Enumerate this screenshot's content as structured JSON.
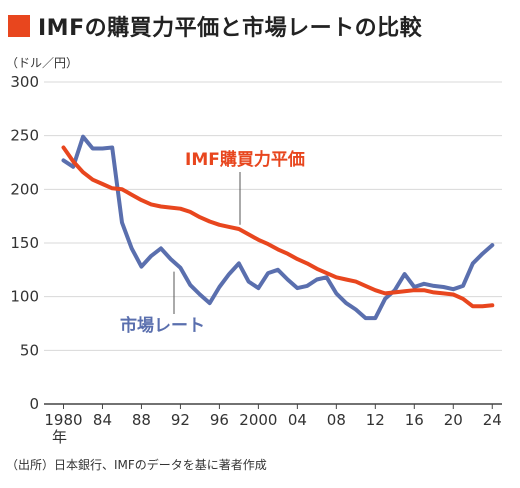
{
  "title": "IMFの購買力平価と市場レートの比較",
  "unit": "（ドル／円）",
  "source": "（出所）日本銀行、IMFのデータを基に著者作成",
  "colors": {
    "accent": "#e8461e",
    "ppp": "#e8461e",
    "market": "#5a6fae",
    "grid": "#d8d8d8",
    "axis": "#444444"
  },
  "chart_data": {
    "type": "line",
    "title": "IMFの購買力平価と市場レートの比較",
    "ylabel": "（ドル／円）",
    "xlabel": "",
    "ylim": [
      0,
      300
    ],
    "xlim": [
      1978,
      2025
    ],
    "yticks": [
      0,
      50,
      100,
      150,
      200,
      250,
      300
    ],
    "xticks": [
      {
        "value": 1980,
        "label": "1980"
      },
      {
        "value": 1984,
        "label": "84"
      },
      {
        "value": 1988,
        "label": "88"
      },
      {
        "value": 1992,
        "label": "92"
      },
      {
        "value": 1996,
        "label": "96"
      },
      {
        "value": 2000,
        "label": "2000"
      },
      {
        "value": 2004,
        "label": "04"
      },
      {
        "value": 2008,
        "label": "08"
      },
      {
        "value": 2012,
        "label": "12"
      },
      {
        "value": 2016,
        "label": "16"
      },
      {
        "value": 2020,
        "label": "20"
      },
      {
        "value": 2024,
        "label": "24"
      }
    ],
    "x_suffix": "年",
    "grid": true,
    "series": [
      {
        "name": "IMF購買力平価",
        "color": "#e8461e",
        "x": [
          1980,
          1981,
          1982,
          1983,
          1984,
          1985,
          1986,
          1987,
          1988,
          1989,
          1990,
          1991,
          1992,
          1993,
          1994,
          1995,
          1996,
          1997,
          1998,
          1999,
          2000,
          2001,
          2002,
          2003,
          2004,
          2005,
          2006,
          2007,
          2008,
          2009,
          2010,
          2011,
          2012,
          2013,
          2014,
          2015,
          2016,
          2017,
          2018,
          2019,
          2020,
          2021,
          2022,
          2023,
          2024
        ],
        "y": [
          239,
          226,
          216,
          209,
          205,
          201,
          200,
          195,
          190,
          186,
          184,
          183,
          182,
          179,
          174,
          170,
          167,
          165,
          163,
          158,
          153,
          149,
          144,
          140,
          135,
          131,
          126,
          122,
          118,
          116,
          114,
          110,
          106,
          103,
          104,
          105,
          106,
          106,
          104,
          103,
          102,
          98,
          91,
          91,
          92
        ]
      },
      {
        "name": "市場レート",
        "color": "#5a6fae",
        "x": [
          1980,
          1981,
          1982,
          1983,
          1984,
          1985,
          1986,
          1987,
          1988,
          1989,
          1990,
          1991,
          1992,
          1993,
          1994,
          1995,
          1996,
          1997,
          1998,
          1999,
          2000,
          2001,
          2002,
          2003,
          2004,
          2005,
          2006,
          2007,
          2008,
          2009,
          2010,
          2011,
          2012,
          2013,
          2014,
          2015,
          2016,
          2017,
          2018,
          2019,
          2020,
          2021,
          2022,
          2023,
          2024
        ],
        "y": [
          227,
          221,
          249,
          238,
          238,
          239,
          169,
          145,
          128,
          138,
          145,
          135,
          127,
          111,
          102,
          94,
          109,
          121,
          131,
          114,
          108,
          122,
          125,
          116,
          108,
          110,
          116,
          118,
          103,
          94,
          88,
          80,
          80,
          98,
          106,
          121,
          109,
          112,
          110,
          109,
          107,
          110,
          131,
          140,
          148
        ]
      }
    ]
  }
}
